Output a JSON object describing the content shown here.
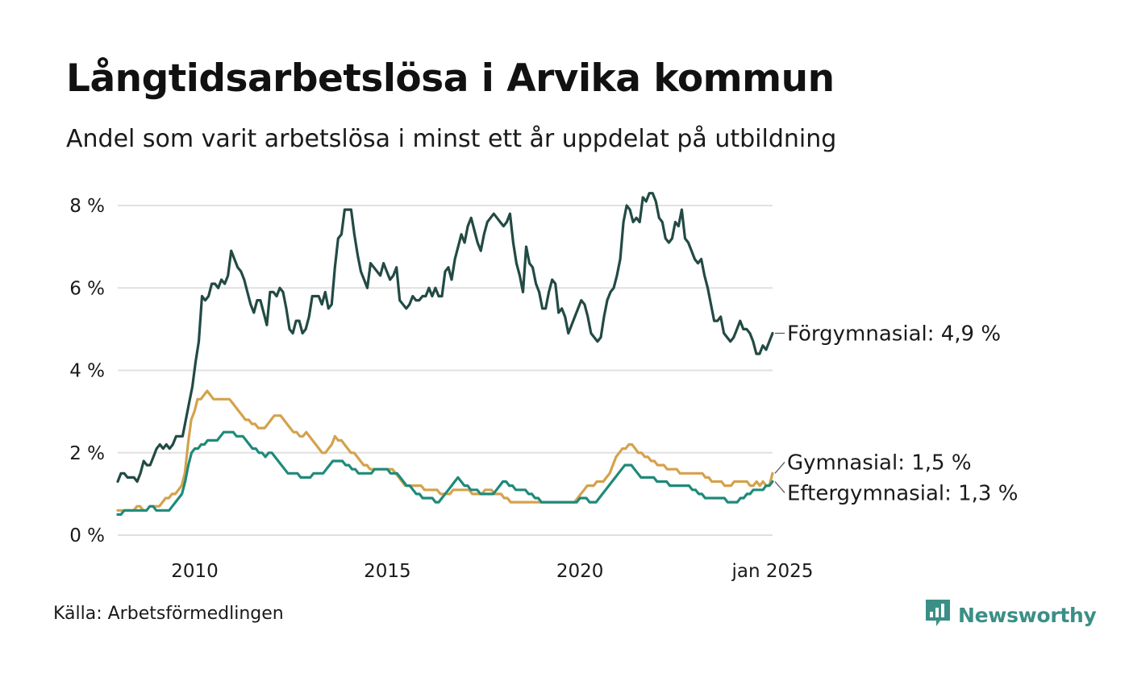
{
  "title": "Långtidsarbetslösa i Arvika kommun",
  "subtitle": "Andel som varit arbetslösa i minst ett år uppdelat på utbildning",
  "source": "Källa: Arbetsförmedlingen",
  "brand": {
    "name": "Newsworthy",
    "icon": "newsworthy-logo-icon",
    "color": "#3a8f86"
  },
  "chart_data": {
    "type": "line",
    "title": "Långtidsarbetslösa i Arvika kommun",
    "subtitle": "Andel som varit arbetslösa i minst ett år uppdelat på utbildning",
    "xlabel": "",
    "ylabel": "",
    "x_start": 2008.0,
    "x_end": 2025.0,
    "xlim": [
      2008.0,
      2025.0
    ],
    "ylim": [
      0,
      8
    ],
    "yticks": [
      {
        "value": 0,
        "label": "0 %"
      },
      {
        "value": 2,
        "label": "2 %"
      },
      {
        "value": 4,
        "label": "4 %"
      },
      {
        "value": 6,
        "label": "6 %"
      },
      {
        "value": 8,
        "label": "8 %"
      }
    ],
    "xticks": [
      {
        "value": 2010,
        "label": "2010"
      },
      {
        "value": 2015,
        "label": "2015"
      },
      {
        "value": 2020,
        "label": "2020"
      },
      {
        "value": 2025,
        "label": "jan 2025"
      }
    ],
    "grid": true,
    "series": [
      {
        "name": "Förgymnasial",
        "end_label": "Förgymnasial: 4,9 %",
        "color": "#234a44",
        "values": [
          1.3,
          1.5,
          1.5,
          1.4,
          1.4,
          1.4,
          1.3,
          1.5,
          1.8,
          1.7,
          1.7,
          1.9,
          2.1,
          2.2,
          2.1,
          2.2,
          2.1,
          2.2,
          2.4,
          2.4,
          2.4,
          2.8,
          3.2,
          3.6,
          4.2,
          4.7,
          5.8,
          5.7,
          5.8,
          6.1,
          6.1,
          6.0,
          6.2,
          6.1,
          6.3,
          6.9,
          6.7,
          6.5,
          6.4,
          6.2,
          5.9,
          5.6,
          5.4,
          5.7,
          5.7,
          5.4,
          5.1,
          5.9,
          5.9,
          5.8,
          6.0,
          5.9,
          5.5,
          5.0,
          4.9,
          5.2,
          5.2,
          4.9,
          5.0,
          5.3,
          5.8,
          5.8,
          5.8,
          5.6,
          5.9,
          5.5,
          5.6,
          6.5,
          7.2,
          7.3,
          7.9,
          7.9,
          7.9,
          7.3,
          6.8,
          6.4,
          6.2,
          6.0,
          6.6,
          6.5,
          6.4,
          6.3,
          6.6,
          6.4,
          6.2,
          6.3,
          6.5,
          5.7,
          5.6,
          5.5,
          5.6,
          5.8,
          5.7,
          5.7,
          5.8,
          5.8,
          6.0,
          5.8,
          6.0,
          5.8,
          5.8,
          6.4,
          6.5,
          6.2,
          6.7,
          7.0,
          7.3,
          7.1,
          7.5,
          7.7,
          7.4,
          7.1,
          6.9,
          7.3,
          7.6,
          7.7,
          7.8,
          7.7,
          7.6,
          7.5,
          7.6,
          7.8,
          7.1,
          6.6,
          6.3,
          5.9,
          7.0,
          6.6,
          6.5,
          6.1,
          5.9,
          5.5,
          5.5,
          5.9,
          6.2,
          6.1,
          5.4,
          5.5,
          5.3,
          4.9,
          5.1,
          5.3,
          5.5,
          5.7,
          5.6,
          5.3,
          4.9,
          4.8,
          4.7,
          4.8,
          5.3,
          5.7,
          5.9,
          6.0,
          6.3,
          6.7,
          7.6,
          8.0,
          7.9,
          7.6,
          7.7,
          7.6,
          8.2,
          8.1,
          8.3,
          8.3,
          8.1,
          7.7,
          7.6,
          7.2,
          7.1,
          7.2,
          7.6,
          7.5,
          7.9,
          7.2,
          7.1,
          6.9,
          6.7,
          6.6,
          6.7,
          6.3,
          6.0,
          5.6,
          5.2,
          5.2,
          5.3,
          4.9,
          4.8,
          4.7,
          4.8,
          5.0,
          5.2,
          5.0,
          5.0,
          4.9,
          4.7,
          4.4,
          4.4,
          4.6,
          4.5,
          4.7,
          4.9
        ]
      },
      {
        "name": "Gymnasial",
        "end_label": "Gymnasial: 1,5 %",
        "color": "#d4a24c",
        "values": [
          0.6,
          0.6,
          0.6,
          0.6,
          0.6,
          0.6,
          0.7,
          0.7,
          0.6,
          0.6,
          0.7,
          0.7,
          0.7,
          0.7,
          0.8,
          0.9,
          0.9,
          1.0,
          1.0,
          1.1,
          1.2,
          1.5,
          2.2,
          2.8,
          3.0,
          3.3,
          3.3,
          3.4,
          3.5,
          3.4,
          3.3,
          3.3,
          3.3,
          3.3,
          3.3,
          3.3,
          3.2,
          3.1,
          3.0,
          2.9,
          2.8,
          2.8,
          2.7,
          2.7,
          2.6,
          2.6,
          2.6,
          2.7,
          2.8,
          2.9,
          2.9,
          2.9,
          2.8,
          2.7,
          2.6,
          2.5,
          2.5,
          2.4,
          2.4,
          2.5,
          2.4,
          2.3,
          2.2,
          2.1,
          2.0,
          2.0,
          2.1,
          2.2,
          2.4,
          2.3,
          2.3,
          2.2,
          2.1,
          2.0,
          2.0,
          1.9,
          1.8,
          1.7,
          1.7,
          1.6,
          1.6,
          1.6,
          1.6,
          1.6,
          1.6,
          1.6,
          1.6,
          1.5,
          1.4,
          1.3,
          1.2,
          1.2,
          1.2,
          1.2,
          1.2,
          1.2,
          1.1,
          1.1,
          1.1,
          1.1,
          1.1,
          1.0,
          1.0,
          1.0,
          1.0,
          1.1,
          1.1,
          1.1,
          1.1,
          1.1,
          1.1,
          1.0,
          1.0,
          1.0,
          1.0,
          1.1,
          1.1,
          1.1,
          1.0,
          1.0,
          1.0,
          0.9,
          0.9,
          0.8,
          0.8,
          0.8,
          0.8,
          0.8,
          0.8,
          0.8,
          0.8,
          0.8,
          0.8,
          0.8,
          0.8,
          0.8,
          0.8,
          0.8,
          0.8,
          0.8,
          0.8,
          0.8,
          0.8,
          0.8,
          0.9,
          1.0,
          1.1,
          1.2,
          1.2,
          1.2,
          1.3,
          1.3,
          1.3,
          1.4,
          1.5,
          1.7,
          1.9,
          2.0,
          2.1,
          2.1,
          2.2,
          2.2,
          2.1,
          2.0,
          2.0,
          1.9,
          1.9,
          1.8,
          1.8,
          1.7,
          1.7,
          1.7,
          1.6,
          1.6,
          1.6,
          1.6,
          1.5,
          1.5,
          1.5,
          1.5,
          1.5,
          1.5,
          1.5,
          1.5,
          1.4,
          1.4,
          1.3,
          1.3,
          1.3,
          1.3,
          1.2,
          1.2,
          1.2,
          1.3,
          1.3,
          1.3,
          1.3,
          1.3,
          1.2,
          1.2,
          1.3,
          1.2,
          1.3,
          1.2,
          1.2,
          1.5
        ]
      },
      {
        "name": "Eftergymnasial",
        "end_label": "Eftergymnasial: 1,3 %",
        "color": "#1f8a7a",
        "values": [
          0.5,
          0.5,
          0.6,
          0.6,
          0.6,
          0.6,
          0.6,
          0.6,
          0.6,
          0.6,
          0.7,
          0.7,
          0.6,
          0.6,
          0.6,
          0.6,
          0.6,
          0.7,
          0.8,
          0.9,
          1.0,
          1.3,
          1.7,
          2.0,
          2.1,
          2.1,
          2.2,
          2.2,
          2.3,
          2.3,
          2.3,
          2.3,
          2.4,
          2.5,
          2.5,
          2.5,
          2.5,
          2.4,
          2.4,
          2.4,
          2.3,
          2.2,
          2.1,
          2.1,
          2.0,
          2.0,
          1.9,
          2.0,
          2.0,
          1.9,
          1.8,
          1.7,
          1.6,
          1.5,
          1.5,
          1.5,
          1.5,
          1.4,
          1.4,
          1.4,
          1.4,
          1.5,
          1.5,
          1.5,
          1.5,
          1.6,
          1.7,
          1.8,
          1.8,
          1.8,
          1.8,
          1.7,
          1.7,
          1.6,
          1.6,
          1.5,
          1.5,
          1.5,
          1.5,
          1.5,
          1.6,
          1.6,
          1.6,
          1.6,
          1.6,
          1.5,
          1.5,
          1.5,
          1.4,
          1.3,
          1.2,
          1.2,
          1.1,
          1.0,
          1.0,
          0.9,
          0.9,
          0.9,
          0.9,
          0.8,
          0.8,
          0.9,
          1.0,
          1.1,
          1.2,
          1.3,
          1.4,
          1.3,
          1.2,
          1.2,
          1.1,
          1.1,
          1.1,
          1.0,
          1.0,
          1.0,
          1.0,
          1.0,
          1.1,
          1.2,
          1.3,
          1.3,
          1.2,
          1.2,
          1.1,
          1.1,
          1.1,
          1.1,
          1.0,
          1.0,
          0.9,
          0.9,
          0.8,
          0.8,
          0.8,
          0.8,
          0.8,
          0.8,
          0.8,
          0.8,
          0.8,
          0.8,
          0.8,
          0.8,
          0.9,
          0.9,
          0.9,
          0.8,
          0.8,
          0.8,
          0.9,
          1.0,
          1.1,
          1.2,
          1.3,
          1.4,
          1.5,
          1.6,
          1.7,
          1.7,
          1.7,
          1.6,
          1.5,
          1.4,
          1.4,
          1.4,
          1.4,
          1.4,
          1.3,
          1.3,
          1.3,
          1.3,
          1.2,
          1.2,
          1.2,
          1.2,
          1.2,
          1.2,
          1.2,
          1.1,
          1.1,
          1.0,
          1.0,
          0.9,
          0.9,
          0.9,
          0.9,
          0.9,
          0.9,
          0.9,
          0.8,
          0.8,
          0.8,
          0.8,
          0.9,
          0.9,
          1.0,
          1.0,
          1.1,
          1.1,
          1.1,
          1.1,
          1.2,
          1.2,
          1.3
        ]
      }
    ]
  }
}
